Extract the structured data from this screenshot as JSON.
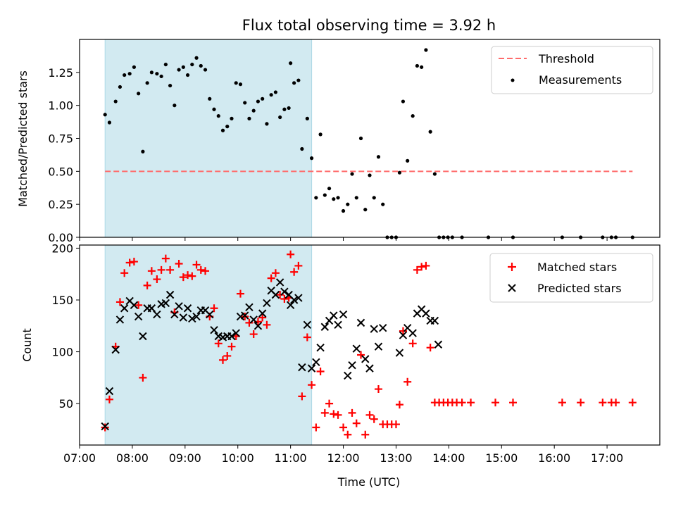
{
  "chart_data": [
    {
      "type": "scatter",
      "title": "Flux total observing time = 3.92 h",
      "xlabel": "",
      "ylabel": "Matched/Predicted stars",
      "xlim": [
        "07:00",
        "18:00"
      ],
      "ylim": [
        0,
        1.5
      ],
      "y_ticks": [
        "0.00",
        "0.25",
        "0.50",
        "0.75",
        "1.00",
        "1.25"
      ],
      "x_ticks_labeled": false,
      "shaded_interval": {
        "start": "07:29",
        "end": "11:24",
        "color": "#add8e6"
      },
      "threshold": {
        "name": "Threshold",
        "value": 0.5,
        "x_range": [
          "07:29",
          "17:29"
        ],
        "color": "#ff6b6b",
        "style": "dashed"
      },
      "legend": {
        "position": "top-right",
        "entries": [
          "Threshold",
          "Measurements"
        ]
      },
      "series": [
        {
          "name": "Measurements",
          "color": "#000000",
          "marker": "dot",
          "points": [
            [
              "07:29",
              0.93
            ],
            [
              "07:34",
              0.87
            ],
            [
              "07:41",
              1.03
            ],
            [
              "07:46",
              1.14
            ],
            [
              "07:51",
              1.23
            ],
            [
              "07:57",
              1.24
            ],
            [
              "08:02",
              1.29
            ],
            [
              "08:07",
              1.09
            ],
            [
              "08:12",
              0.65
            ],
            [
              "08:17",
              1.17
            ],
            [
              "08:22",
              1.25
            ],
            [
              "08:28",
              1.24
            ],
            [
              "08:33",
              1.22
            ],
            [
              "08:38",
              1.31
            ],
            [
              "08:43",
              1.15
            ],
            [
              "08:48",
              1.0
            ],
            [
              "08:53",
              1.27
            ],
            [
              "08:58",
              1.29
            ],
            [
              "09:03",
              1.23
            ],
            [
              "09:08",
              1.31
            ],
            [
              "09:13",
              1.36
            ],
            [
              "09:18",
              1.3
            ],
            [
              "09:23",
              1.27
            ],
            [
              "09:28",
              1.05
            ],
            [
              "09:33",
              0.97
            ],
            [
              "09:38",
              0.92
            ],
            [
              "09:43",
              0.81
            ],
            [
              "09:48",
              0.84
            ],
            [
              "09:53",
              0.9
            ],
            [
              "09:58",
              1.17
            ],
            [
              "10:03",
              1.16
            ],
            [
              "10:08",
              1.02
            ],
            [
              "10:13",
              0.9
            ],
            [
              "10:18",
              0.96
            ],
            [
              "10:23",
              1.03
            ],
            [
              "10:28",
              1.05
            ],
            [
              "10:33",
              0.86
            ],
            [
              "10:38",
              1.08
            ],
            [
              "10:43",
              1.1
            ],
            [
              "10:48",
              0.91
            ],
            [
              "10:53",
              0.97
            ],
            [
              "10:58",
              0.98
            ],
            [
              "11:00",
              1.32
            ],
            [
              "11:04",
              1.17
            ],
            [
              "11:09",
              1.19
            ],
            [
              "11:13",
              0.67
            ],
            [
              "11:19",
              0.9
            ],
            [
              "11:24",
              0.6
            ],
            [
              "11:29",
              0.3
            ],
            [
              "11:34",
              0.78
            ],
            [
              "11:39",
              0.32
            ],
            [
              "11:44",
              0.37
            ],
            [
              "11:49",
              0.29
            ],
            [
              "11:54",
              0.3
            ],
            [
              "12:00",
              0.2
            ],
            [
              "12:05",
              0.25
            ],
            [
              "12:10",
              0.48
            ],
            [
              "12:15",
              0.3
            ],
            [
              "12:20",
              0.75
            ],
            [
              "12:25",
              0.21
            ],
            [
              "12:30",
              0.47
            ],
            [
              "12:35",
              0.3
            ],
            [
              "12:40",
              0.61
            ],
            [
              "12:45",
              0.25
            ],
            [
              "12:50",
              0.0
            ],
            [
              "12:55",
              0.0
            ],
            [
              "13:00",
              0.0
            ],
            [
              "13:04",
              0.49
            ],
            [
              "13:08",
              1.03
            ],
            [
              "13:13",
              0.58
            ],
            [
              "13:19",
              0.92
            ],
            [
              "13:24",
              1.3
            ],
            [
              "13:29",
              1.29
            ],
            [
              "13:34",
              1.42
            ],
            [
              "13:39",
              0.8
            ],
            [
              "13:44",
              0.48
            ],
            [
              "13:49",
              0.0
            ],
            [
              "13:54",
              0.0
            ],
            [
              "13:59",
              0.0
            ],
            [
              "14:04",
              0.0
            ],
            [
              "14:15",
              0.0
            ],
            [
              "14:45",
              0.0
            ],
            [
              "15:13",
              0.0
            ],
            [
              "16:09",
              0.0
            ],
            [
              "16:30",
              0.0
            ],
            [
              "16:55",
              0.0
            ],
            [
              "17:05",
              0.0
            ],
            [
              "17:10",
              0.0
            ],
            [
              "17:29",
              0.0
            ]
          ]
        }
      ]
    },
    {
      "type": "scatter",
      "title": "",
      "xlabel": "Time (UTC)",
      "ylabel": "Count",
      "xlim": [
        "07:00",
        "18:00"
      ],
      "ylim": [
        10,
        203
      ],
      "y_ticks": [
        "50",
        "100",
        "150",
        "200"
      ],
      "x_ticks": [
        "07:00",
        "08:00",
        "09:00",
        "10:00",
        "11:00",
        "12:00",
        "13:00",
        "14:00",
        "15:00",
        "16:00",
        "17:00"
      ],
      "shaded_interval": {
        "start": "07:29",
        "end": "11:24",
        "color": "#add8e6"
      },
      "legend": {
        "position": "top-right",
        "entries": [
          "Matched stars",
          "Predicted stars"
        ]
      },
      "series": [
        {
          "name": "Matched stars",
          "color": "#ff0000",
          "marker": "plus",
          "points": [
            [
              "07:29",
              27
            ],
            [
              "07:34",
              54
            ],
            [
              "07:41",
              105
            ],
            [
              "07:46",
              148
            ],
            [
              "07:51",
              176
            ],
            [
              "07:57",
              186
            ],
            [
              "08:02",
              187
            ],
            [
              "08:07",
              145
            ],
            [
              "08:12",
              75
            ],
            [
              "08:17",
              164
            ],
            [
              "08:22",
              178
            ],
            [
              "08:28",
              170
            ],
            [
              "08:33",
              179
            ],
            [
              "08:38",
              190
            ],
            [
              "08:43",
              179
            ],
            [
              "08:48",
              138
            ],
            [
              "08:53",
              185
            ],
            [
              "08:58",
              172
            ],
            [
              "09:03",
              174
            ],
            [
              "09:08",
              173
            ],
            [
              "09:13",
              184
            ],
            [
              "09:18",
              179
            ],
            [
              "09:23",
              178
            ],
            [
              "09:28",
              134
            ],
            [
              "09:33",
              142
            ],
            [
              "09:38",
              108
            ],
            [
              "09:43",
              92
            ],
            [
              "09:48",
              96
            ],
            [
              "09:53",
              105
            ],
            [
              "09:58",
              115
            ],
            [
              "10:03",
              156
            ],
            [
              "10:08",
              134
            ],
            [
              "10:13",
              128
            ],
            [
              "10:18",
              117
            ],
            [
              "10:23",
              129
            ],
            [
              "10:28",
              133
            ],
            [
              "10:33",
              126
            ],
            [
              "10:38",
              171
            ],
            [
              "10:43",
              176
            ],
            [
              "10:48",
              155
            ],
            [
              "10:53",
              151
            ],
            [
              "10:58",
              152
            ],
            [
              "11:00",
              194
            ],
            [
              "11:04",
              177
            ],
            [
              "11:09",
              183
            ],
            [
              "11:13",
              57
            ],
            [
              "11:19",
              114
            ],
            [
              "11:24",
              68
            ],
            [
              "11:29",
              27
            ],
            [
              "11:34",
              81
            ],
            [
              "11:39",
              41
            ],
            [
              "11:44",
              50
            ],
            [
              "11:49",
              40
            ],
            [
              "11:54",
              39
            ],
            [
              "12:00",
              27
            ],
            [
              "12:05",
              20
            ],
            [
              "12:10",
              41
            ],
            [
              "12:15",
              31
            ],
            [
              "12:20",
              97
            ],
            [
              "12:25",
              20
            ],
            [
              "12:30",
              39
            ],
            [
              "12:35",
              35
            ],
            [
              "12:40",
              64
            ],
            [
              "12:45",
              30
            ],
            [
              "12:50",
              30
            ],
            [
              "12:55",
              30
            ],
            [
              "13:00",
              30
            ],
            [
              "13:04",
              49
            ],
            [
              "13:08",
              120
            ],
            [
              "13:13",
              71
            ],
            [
              "13:19",
              108
            ],
            [
              "13:24",
              179
            ],
            [
              "13:29",
              182
            ],
            [
              "13:34",
              183
            ],
            [
              "13:39",
              104
            ],
            [
              "13:44",
              51
            ],
            [
              "13:49",
              51
            ],
            [
              "13:54",
              51
            ],
            [
              "13:59",
              51
            ],
            [
              "14:04",
              51
            ],
            [
              "14:09",
              51
            ],
            [
              "14:15",
              51
            ],
            [
              "14:25",
              51
            ],
            [
              "14:53",
              51
            ],
            [
              "15:13",
              51
            ],
            [
              "16:09",
              51
            ],
            [
              "16:30",
              51
            ],
            [
              "16:55",
              51
            ],
            [
              "17:05",
              51
            ],
            [
              "17:10",
              51
            ],
            [
              "17:29",
              51
            ]
          ]
        },
        {
          "name": "Predicted stars",
          "color": "#000000",
          "marker": "x",
          "points": [
            [
              "07:29",
              28
            ],
            [
              "07:34",
              62
            ],
            [
              "07:41",
              102
            ],
            [
              "07:46",
              131
            ],
            [
              "07:51",
              142
            ],
            [
              "07:57",
              149
            ],
            [
              "08:02",
              145
            ],
            [
              "08:07",
              134
            ],
            [
              "08:12",
              115
            ],
            [
              "08:17",
              142
            ],
            [
              "08:22",
              142
            ],
            [
              "08:28",
              136
            ],
            [
              "08:33",
              146
            ],
            [
              "08:38",
              147
            ],
            [
              "08:43",
              155
            ],
            [
              "08:48",
              136
            ],
            [
              "08:53",
              144
            ],
            [
              "08:58",
              133
            ],
            [
              "09:03",
              142
            ],
            [
              "09:08",
              132
            ],
            [
              "09:13",
              134
            ],
            [
              "09:18",
              140
            ],
            [
              "09:23",
              140
            ],
            [
              "09:28",
              136
            ],
            [
              "09:33",
              121
            ],
            [
              "09:38",
              115
            ],
            [
              "09:43",
              114
            ],
            [
              "09:48",
              115
            ],
            [
              "09:53",
              115
            ],
            [
              "09:58",
              118
            ],
            [
              "10:03",
              134
            ],
            [
              "10:08",
              135
            ],
            [
              "10:13",
              143
            ],
            [
              "10:18",
              131
            ],
            [
              "10:23",
              125
            ],
            [
              "10:28",
              137
            ],
            [
              "10:33",
              147
            ],
            [
              "10:38",
              159
            ],
            [
              "10:43",
              155
            ],
            [
              "10:48",
              167
            ],
            [
              "10:53",
              158
            ],
            [
              "10:58",
              155
            ],
            [
              "11:00",
              145
            ],
            [
              "11:04",
              150
            ],
            [
              "11:09",
              152
            ],
            [
              "11:13",
              85
            ],
            [
              "11:19",
              126
            ],
            [
              "11:24",
              84
            ],
            [
              "11:29",
              90
            ],
            [
              "11:34",
              104
            ],
            [
              "11:39",
              124
            ],
            [
              "11:44",
              130
            ],
            [
              "11:49",
              135
            ],
            [
              "11:54",
              126
            ],
            [
              "12:00",
              136
            ],
            [
              "12:05",
              77
            ],
            [
              "12:10",
              87
            ],
            [
              "12:15",
              103
            ],
            [
              "12:20",
              128
            ],
            [
              "12:25",
              93
            ],
            [
              "12:30",
              84
            ],
            [
              "12:35",
              122
            ],
            [
              "12:40",
              105
            ],
            [
              "12:45",
              123
            ],
            [
              "13:04",
              99
            ],
            [
              "13:08",
              116
            ],
            [
              "13:13",
              123
            ],
            [
              "13:19",
              118
            ],
            [
              "13:24",
              137
            ],
            [
              "13:29",
              141
            ],
            [
              "13:34",
              137
            ],
            [
              "13:39",
              130
            ],
            [
              "13:44",
              130
            ],
            [
              "13:48",
              107
            ]
          ]
        }
      ]
    }
  ]
}
